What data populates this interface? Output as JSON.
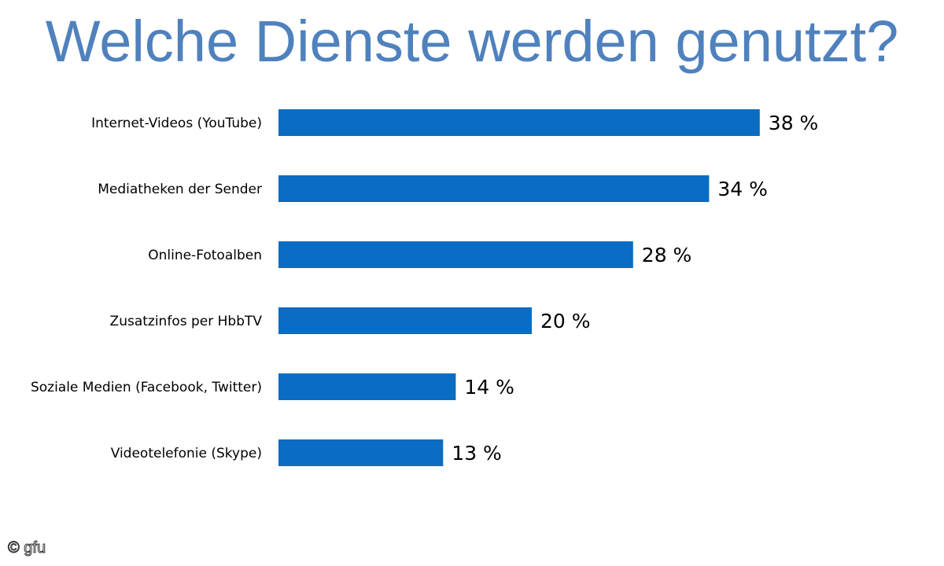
{
  "chart_data": {
    "type": "bar",
    "orientation": "horizontal",
    "title": "Welche Dienste werden genutzt?",
    "categories": [
      "Internet-Videos (YouTube)",
      "Mediatheken der Sender",
      "Online-Fotoalben",
      "Zusatzinfos per HbbTV",
      "Soziale Medien (Facebook, Twitter)",
      "Videotelefonie (Skype)"
    ],
    "values": [
      38,
      34,
      28,
      20,
      14,
      13
    ],
    "value_labels": [
      "38 %",
      "34 %",
      "28 %",
      "20 %",
      "14 %",
      "13 %"
    ],
    "unit": "%",
    "bar_color": "#0a6cc2",
    "grid": false,
    "legend": "none"
  },
  "colors": {
    "title": "#4f81bd",
    "bar": "#0a6cc2"
  },
  "credit": "© gfu"
}
